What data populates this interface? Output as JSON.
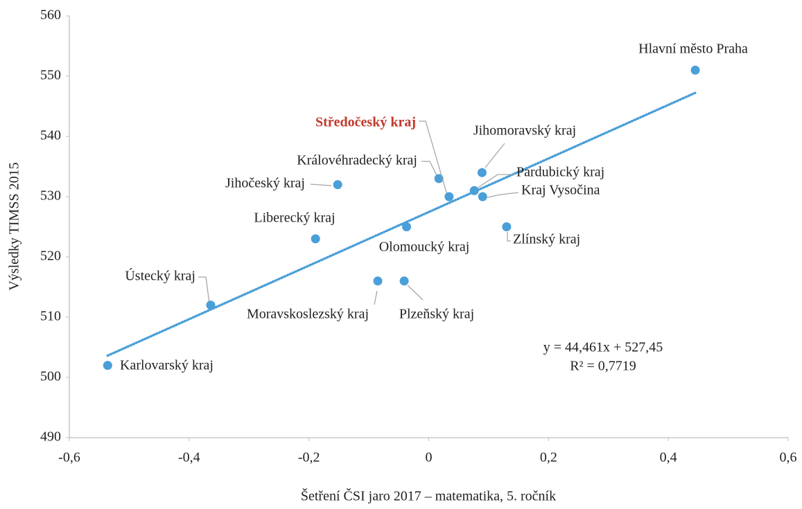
{
  "chart_data": {
    "type": "scatter",
    "x_label": "Šetření ČSI jaro 2017 – matematika, 5. ročník",
    "y_label": "Výsledky TIMSS 2015",
    "labels": [
      "Karlovarský kraj",
      "Ústecký kraj",
      "Liberecký kraj",
      "Jihočeský kraj",
      "Moravskoslezský kraj",
      "Olomoucký kraj",
      "Plzeňský kraj",
      "Královéhradecký kraj",
      "Středočeský kraj",
      "Pardubický kraj",
      "Jihomoravský kraj",
      "Kraj Vysočina",
      "Zlínský kraj",
      "Hlavní město Praha"
    ],
    "x": [
      -0.536,
      -0.364,
      -0.189,
      -0.152,
      -0.085,
      -0.037,
      -0.041,
      0.017,
      0.034,
      0.076,
      0.089,
      0.09,
      0.13,
      0.445
    ],
    "values": [
      502,
      512,
      523,
      532,
      516,
      525,
      516,
      533,
      530,
      531,
      534,
      530,
      525,
      551
    ],
    "color": "#4a9fd8",
    "highlight_color": "#c0392b",
    "trendline": {
      "slope": 44.461,
      "intercept": 527.45,
      "equation": "y = 44,461x + 527,45",
      "r2_label": "R² = 0,7719"
    },
    "xlim": [
      -0.6,
      0.6
    ],
    "xticks": [
      {
        "value": -0.6,
        "label": "-0,6"
      },
      {
        "value": -0.4,
        "label": "-0,4"
      },
      {
        "value": -0.2,
        "label": "-0,2"
      },
      0,
      {
        "value": 0.2,
        "label": "0,2"
      },
      {
        "value": 0.4,
        "label": "0,4"
      },
      {
        "value": 0.6,
        "label": "0,6"
      }
    ],
    "ylim": [
      490,
      560
    ],
    "yticks": [
      490,
      500,
      510,
      520,
      530,
      540,
      550,
      560
    ]
  }
}
